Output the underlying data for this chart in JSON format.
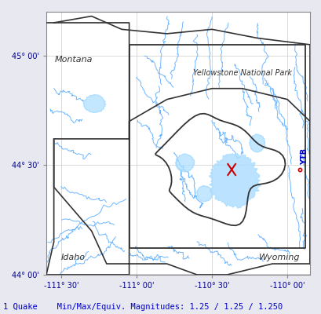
{
  "xlim": [
    -111.6,
    -109.85
  ],
  "ylim": [
    44.0,
    45.2
  ],
  "xticks": [
    -111.5,
    -111.0,
    -110.5,
    -110.0
  ],
  "yticks": [
    44.0,
    44.5,
    45.0
  ],
  "xlabel_labels": [
    "-111° 30'",
    "-111° 00'",
    "-110° 30'",
    "-110° 00'"
  ],
  "ylabel_labels": [
    "44° 00'",
    "44° 30'",
    "45° 00'"
  ],
  "bg_color": "#e8e8f0",
  "plot_bg": "#ffffff",
  "river_color": "#55aaff",
  "state_border_color": "#333333",
  "caldera_color": "#333333",
  "park_box_color": "#333333",
  "lake_color": "#aaddff",
  "title_text": "Yellowstone National Park",
  "bottom_text": "1 Quake    Min/Max/Equiv. Magnitudes: 1.25 / 1.25 / 1.250",
  "quake_x": -110.37,
  "quake_y": 44.48,
  "station_x": -109.92,
  "station_y": 44.48,
  "station_label": "YTB",
  "font_color_blue": "#0000cc",
  "font_color_red": "#cc0000"
}
